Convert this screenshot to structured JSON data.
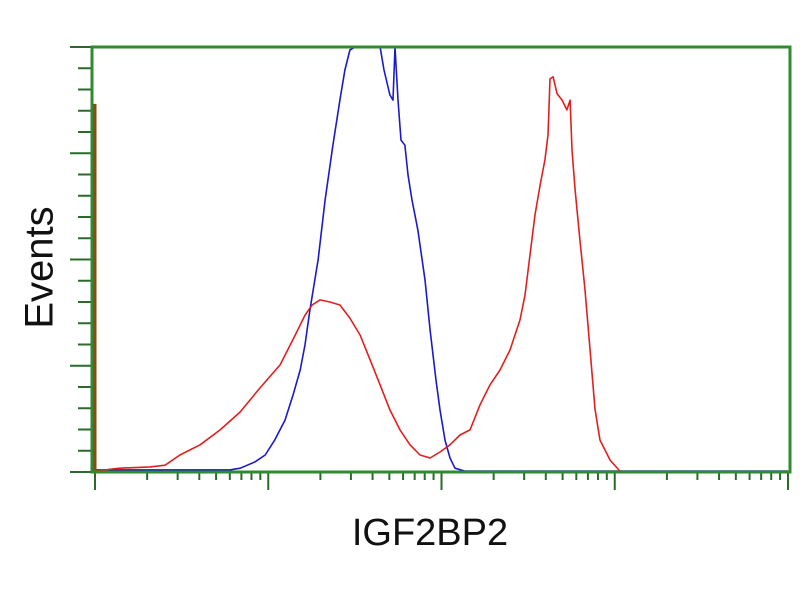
{
  "chart_data": {
    "type": "line",
    "title": "",
    "xlabel": "IGF2BP2",
    "ylabel": "Events",
    "x_scale": "log",
    "xlim": [
      1,
      10000
    ],
    "ylim": [
      0,
      100
    ],
    "grid": false,
    "tick_labels_shown": false,
    "frame_color": "#2e8b2e",
    "series": [
      {
        "color": "#1a1acc",
        "points": [
          [
            1,
            0.5
          ],
          [
            6.0,
            0.5
          ],
          [
            6.9,
            0.9
          ],
          [
            8.4,
            2.4
          ],
          [
            9.6,
            4.0
          ],
          [
            10.9,
            7.5
          ],
          [
            12.5,
            12.2
          ],
          [
            13.9,
            18.1
          ],
          [
            15.3,
            24.0
          ],
          [
            16.3,
            29.9
          ],
          [
            17.4,
            38.1
          ],
          [
            19.4,
            49.9
          ],
          [
            21.3,
            64.0
          ],
          [
            23.6,
            76.9
          ],
          [
            25.9,
            87.5
          ],
          [
            27.7,
            94.6
          ],
          [
            29.6,
            99.3
          ],
          [
            31.7,
            100
          ],
          [
            44.2,
            100
          ],
          [
            46.6,
            94.6
          ],
          [
            50.4,
            88.7
          ],
          [
            52.5,
            87.5
          ],
          [
            53.9,
            100
          ],
          [
            56.1,
            87.5
          ],
          [
            58.4,
            78.1
          ],
          [
            61.5,
            76.9
          ],
          [
            64.1,
            69.9
          ],
          [
            67.6,
            64.0
          ],
          [
            73.1,
            56.9
          ],
          [
            80.3,
            45.2
          ],
          [
            85.9,
            33.4
          ],
          [
            92.9,
            21.6
          ],
          [
            98.0,
            14.6
          ],
          [
            104.7,
            7.5
          ],
          [
            111.9,
            3.3
          ],
          [
            119.6,
            0.9
          ],
          [
            136.7,
            0.2
          ],
          [
            10000,
            0.2
          ]
        ]
      },
      {
        "color": "#e02020",
        "points": [
          [
            1,
            0.2
          ],
          [
            1.39,
            0.9
          ],
          [
            2.08,
            1.2
          ],
          [
            2.54,
            1.6
          ],
          [
            3.09,
            4.0
          ],
          [
            4.04,
            6.4
          ],
          [
            5.27,
            9.9
          ],
          [
            6.87,
            14.1
          ],
          [
            8.96,
            19.8
          ],
          [
            11.7,
            25.2
          ],
          [
            14.3,
            32.2
          ],
          [
            16.3,
            36.9
          ],
          [
            17.9,
            39.3
          ],
          [
            19.9,
            40.5
          ],
          [
            22.7,
            40.0
          ],
          [
            25.9,
            39.3
          ],
          [
            29.6,
            36.2
          ],
          [
            33.9,
            32.2
          ],
          [
            38.7,
            26.4
          ],
          [
            44.2,
            20.5
          ],
          [
            50.4,
            14.6
          ],
          [
            57.6,
            9.9
          ],
          [
            65.8,
            6.4
          ],
          [
            75.1,
            4.0
          ],
          [
            85.9,
            3.3
          ],
          [
            98.0,
            4.7
          ],
          [
            111.9,
            6.4
          ],
          [
            127.9,
            8.7
          ],
          [
            146.1,
            9.9
          ],
          [
            166.8,
            15.8
          ],
          [
            190.5,
            20.5
          ],
          [
            217.6,
            24.0
          ],
          [
            248.5,
            28.7
          ],
          [
            283.8,
            35.8
          ],
          [
            303.4,
            41.6
          ],
          [
            324.3,
            51.1
          ],
          [
            346.7,
            60.5
          ],
          [
            370.7,
            67.5
          ],
          [
            395.4,
            73.4
          ],
          [
            412.1,
            79.3
          ],
          [
            417.8,
            86.4
          ],
          [
            422.7,
            92.5
          ],
          [
            440.6,
            93.0
          ],
          [
            464.5,
            89.0
          ],
          [
            496.6,
            87.5
          ],
          [
            529.7,
            85.2
          ],
          [
            552.1,
            87.5
          ],
          [
            566.2,
            75.8
          ],
          [
            590.2,
            66.4
          ],
          [
            629.6,
            54.6
          ],
          [
            672.9,
            43.1
          ],
          [
            719.5,
            28.9
          ],
          [
            769.1,
            14.8
          ],
          [
            822.2,
            7.5
          ],
          [
            939.7,
            2.8
          ],
          [
            1071,
            0.2
          ],
          [
            1224,
            0
          ]
        ]
      },
      {
        "color": "#8b4a14",
        "points": [
          [
            1,
            0
          ],
          [
            1,
            86.6
          ]
        ]
      }
    ]
  }
}
